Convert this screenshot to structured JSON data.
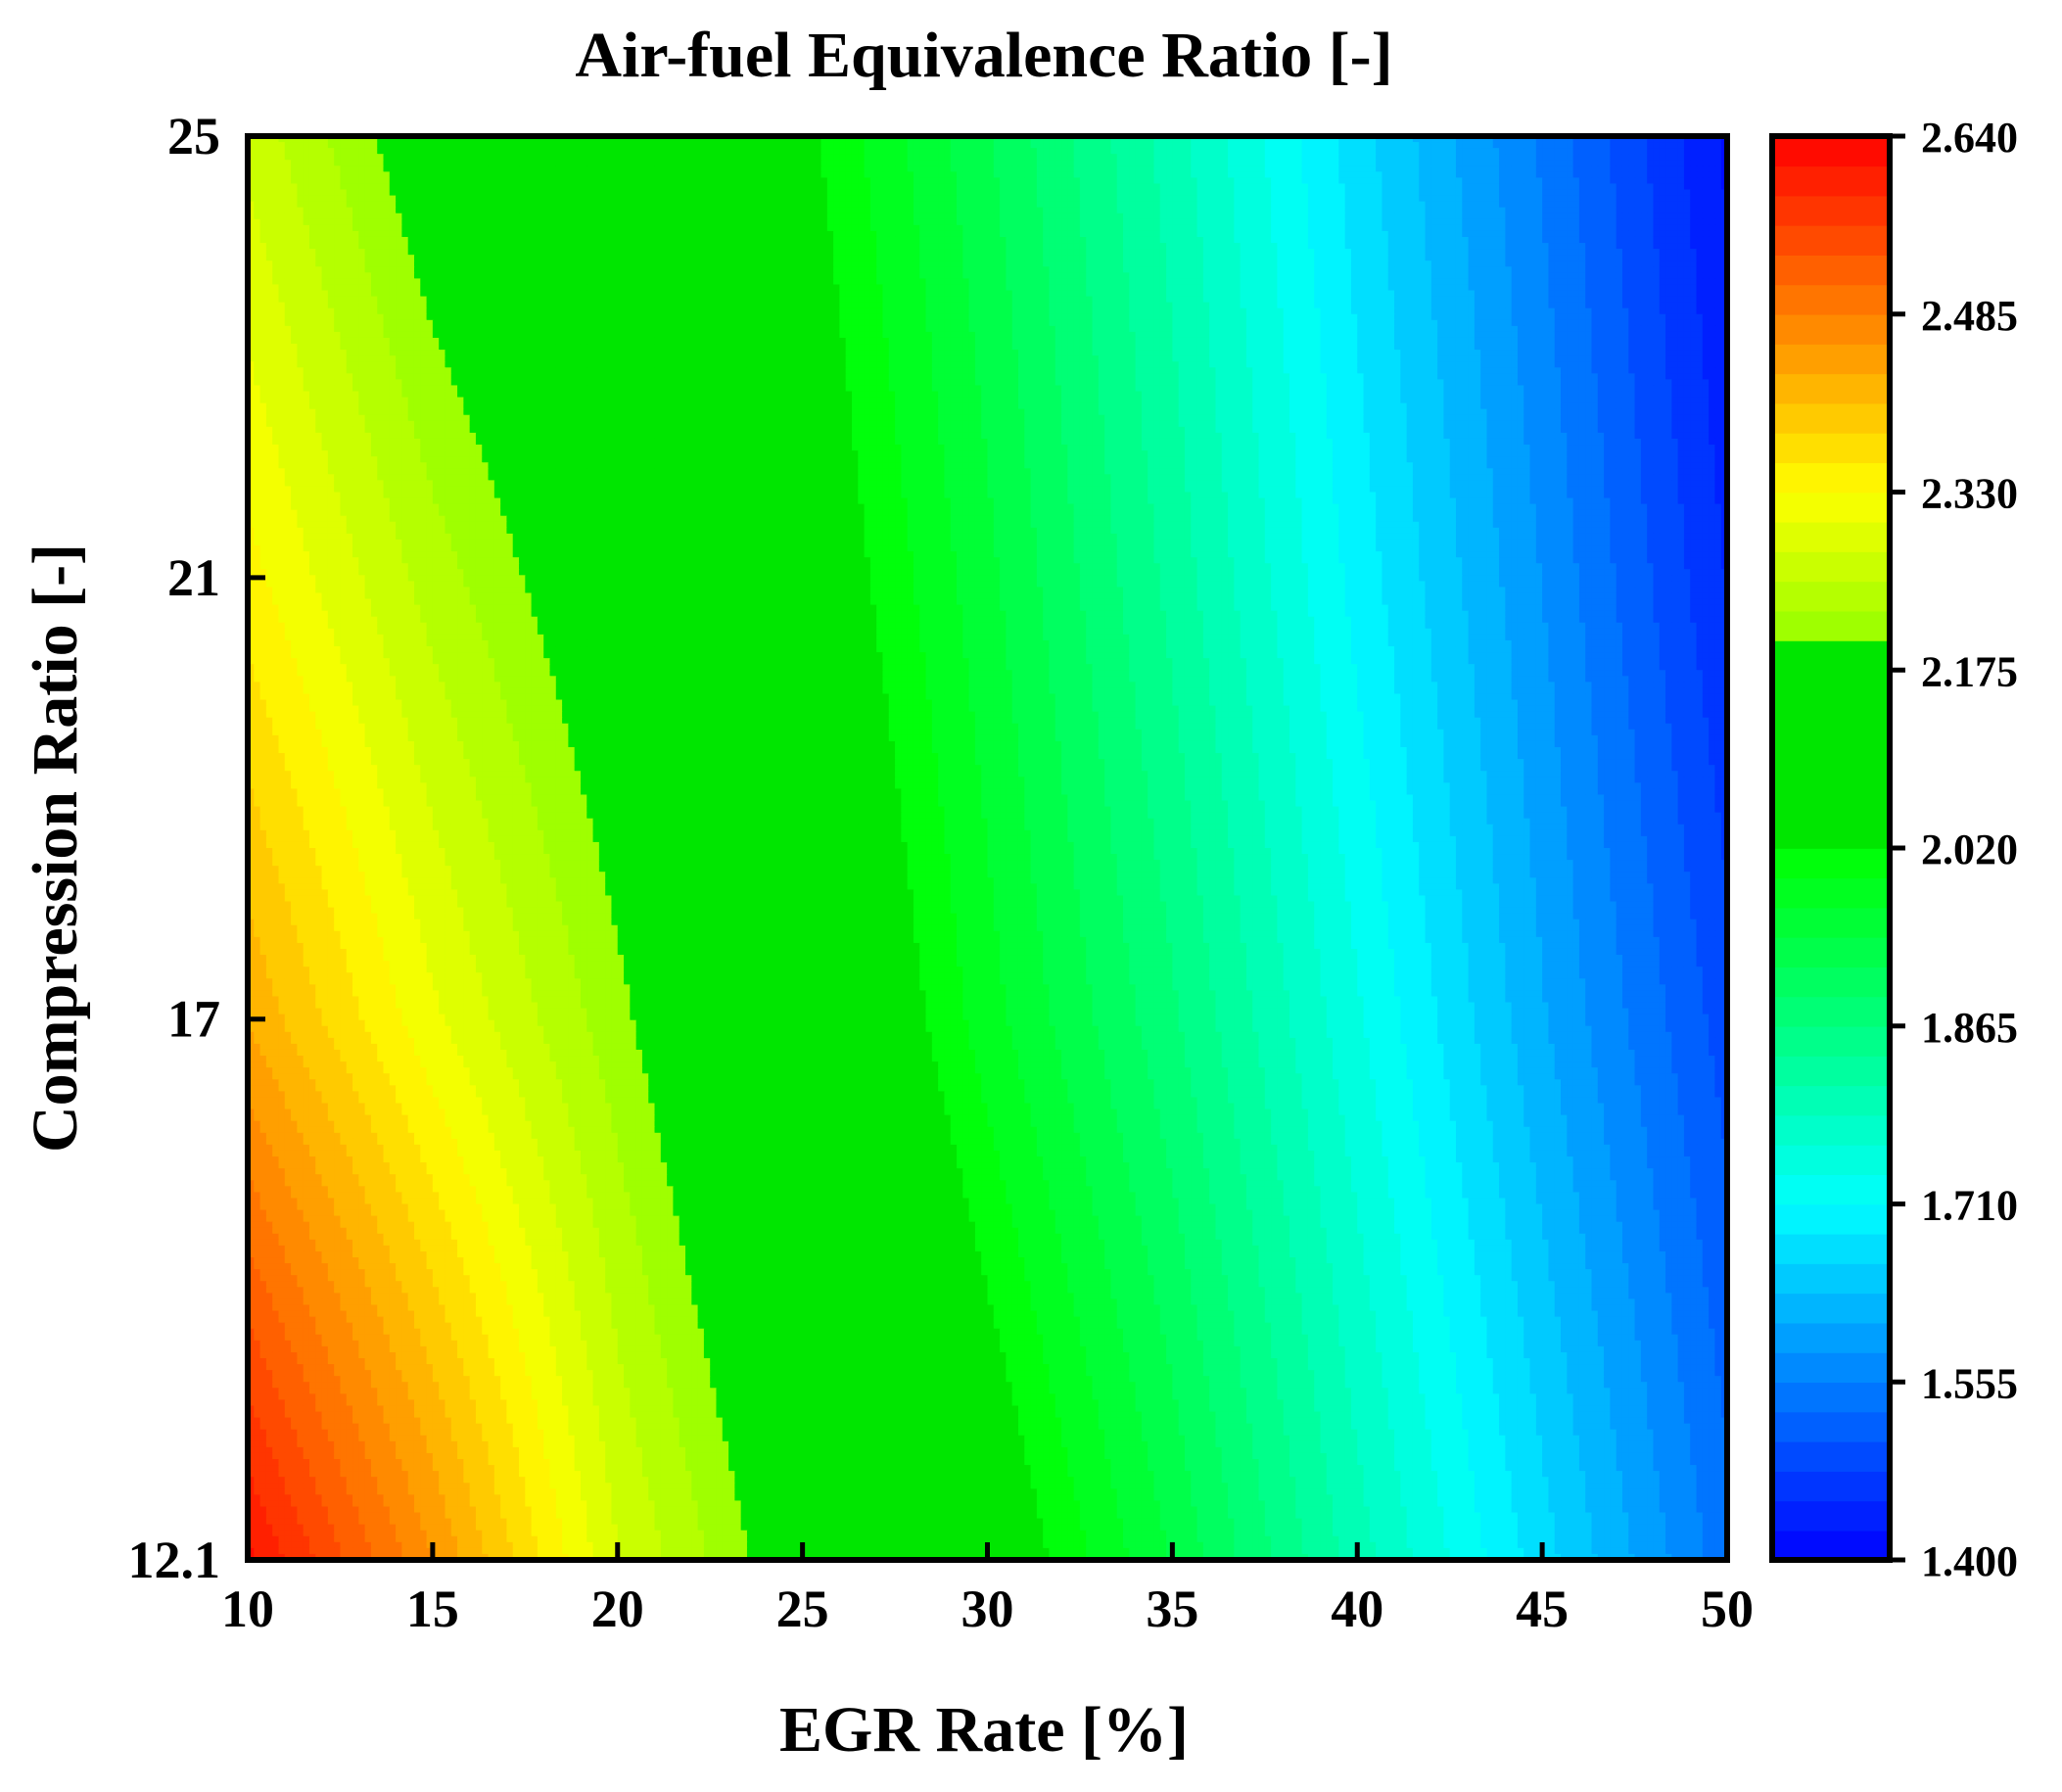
{
  "chart_data": {
    "type": "heatmap",
    "title": "Air-fuel Equivalence Ratio [-]",
    "xlabel": "EGR Rate [%]",
    "ylabel": "Compression Ratio [-]",
    "xlim": [
      10,
      50
    ],
    "ylim": [
      12.1,
      25
    ],
    "x_ticks": [
      "10",
      "15",
      "20",
      "25",
      "30",
      "35",
      "40",
      "45",
      "50"
    ],
    "y_ticks": [
      "12.1",
      "17",
      "21",
      "25"
    ],
    "grid": false,
    "x": [
      10,
      15,
      20,
      25,
      30,
      35,
      40,
      45,
      50
    ],
    "y": [
      12.1,
      17,
      21,
      25
    ],
    "z": [
      [
        2.62,
        2.46,
        2.28,
        2.17,
        2.06,
        1.94,
        1.8,
        1.67,
        1.54
      ],
      [
        2.43,
        2.31,
        2.21,
        2.1,
        1.98,
        1.87,
        1.74,
        1.61,
        1.49
      ],
      [
        2.34,
        2.24,
        2.16,
        2.06,
        1.95,
        1.83,
        1.7,
        1.58,
        1.45
      ],
      [
        2.27,
        2.17,
        2.11,
        2.03,
        1.92,
        1.8,
        1.67,
        1.55,
        1.42
      ]
    ],
    "green_plateau": [
      2.02,
      2.2
    ],
    "colorbar": {
      "min": 1.4,
      "max": 2.64,
      "ticks": [
        "2.640",
        "2.485",
        "2.330",
        "2.175",
        "2.020",
        "1.865",
        "1.710",
        "1.555",
        "1.400"
      ],
      "levels": 48
    }
  }
}
